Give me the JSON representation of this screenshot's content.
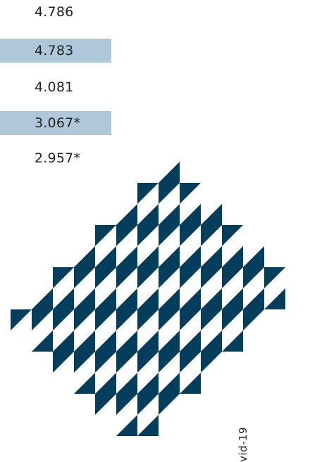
{
  "values": [
    {
      "text": "4.786",
      "highlighted": false
    },
    {
      "text": "4.783",
      "highlighted": true
    },
    {
      "text": "4.081",
      "highlighted": false
    },
    {
      "text": "3.067*",
      "highlighted": true
    },
    {
      "text": "2.957*",
      "highlighted": false
    }
  ],
  "side_label": "vid-19",
  "colors": {
    "highlight": "#afc8d9",
    "pattern": "#053d5c",
    "text": "#232323"
  }
}
